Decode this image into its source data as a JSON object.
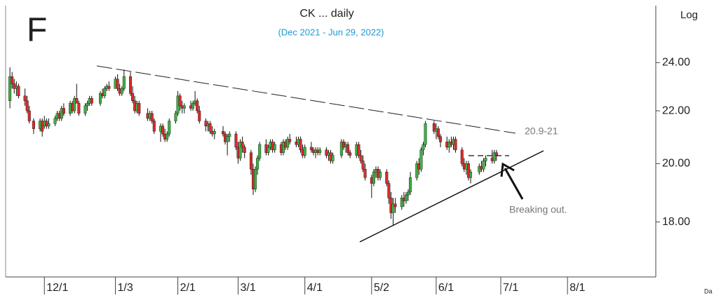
{
  "chart_data": {
    "type": "candlestick",
    "title": "CK ... daily",
    "subtitle": "(Dec 2021 - Jun 29, 2022)",
    "corner_label": "F",
    "scale_label": "Log",
    "log_scale": true,
    "axis_note": "Da",
    "annotations": [
      "20.9-21",
      "Breaking out."
    ],
    "up_color": "#3cb043",
    "down_color": "#d92a2a",
    "ylim": [
      16.3,
      26.6
    ],
    "yticks": [
      {
        "value": 18,
        "label": "18.00"
      },
      {
        "value": 20,
        "label": "20.00"
      },
      {
        "value": 22,
        "label": "22.00"
      },
      {
        "value": 24,
        "label": "24.00"
      }
    ],
    "xlim": [
      "2021-11-13",
      "2022-09-11"
    ],
    "xticks": [
      {
        "value": "2021-12-01",
        "label": "12/1"
      },
      {
        "value": "2022-01-03",
        "label": "1/3"
      },
      {
        "value": "2022-02-01",
        "label": "2/1"
      },
      {
        "value": "2022-03-01",
        "label": "3/1"
      },
      {
        "value": "2022-04-01",
        "label": "4/1"
      },
      {
        "value": "2022-05-02",
        "label": "5/2"
      },
      {
        "value": "2022-06-01",
        "label": "6/1"
      },
      {
        "value": "2022-07-01",
        "label": "7/1"
      },
      {
        "value": "2022-08-01",
        "label": "8/1"
      }
    ],
    "x": [
      "2021-11-15",
      "2021-11-16",
      "2021-11-17",
      "2021-11-18",
      "2021-11-19",
      "2021-11-22",
      "2021-11-23",
      "2021-11-24",
      "2021-11-26",
      "2021-11-29",
      "2021-11-30",
      "2021-12-01",
      "2021-12-02",
      "2021-12-03",
      "2021-12-06",
      "2021-12-07",
      "2021-12-08",
      "2021-12-09",
      "2021-12-10",
      "2021-12-13",
      "2021-12-14",
      "2021-12-15",
      "2021-12-16",
      "2021-12-17",
      "2021-12-20",
      "2021-12-21",
      "2021-12-22",
      "2021-12-23",
      "2021-12-27",
      "2021-12-28",
      "2021-12-29",
      "2021-12-30",
      "2021-12-31",
      "2022-01-03",
      "2022-01-04",
      "2022-01-05",
      "2022-01-06",
      "2022-01-07",
      "2022-01-10",
      "2022-01-11",
      "2022-01-12",
      "2022-01-13",
      "2022-01-14",
      "2022-01-18",
      "2022-01-19",
      "2022-01-20",
      "2022-01-21",
      "2022-01-24",
      "2022-01-25",
      "2022-01-26",
      "2022-01-27",
      "2022-01-28",
      "2022-01-31",
      "2022-02-01",
      "2022-02-02",
      "2022-02-03",
      "2022-02-04",
      "2022-02-07",
      "2022-02-08",
      "2022-02-09",
      "2022-02-10",
      "2022-02-11",
      "2022-02-14",
      "2022-02-15",
      "2022-02-16",
      "2022-02-17",
      "2022-02-18",
      "2022-02-22",
      "2022-02-23",
      "2022-02-24",
      "2022-02-25",
      "2022-02-28",
      "2022-03-01",
      "2022-03-02",
      "2022-03-03",
      "2022-03-04",
      "2022-03-07",
      "2022-03-08",
      "2022-03-09",
      "2022-03-10",
      "2022-03-11",
      "2022-03-14",
      "2022-03-15",
      "2022-03-16",
      "2022-03-17",
      "2022-03-18",
      "2022-03-21",
      "2022-03-22",
      "2022-03-23",
      "2022-03-24",
      "2022-03-25",
      "2022-03-28",
      "2022-03-29",
      "2022-03-30",
      "2022-03-31",
      "2022-04-01",
      "2022-04-04",
      "2022-04-05",
      "2022-04-06",
      "2022-04-07",
      "2022-04-08",
      "2022-04-11",
      "2022-04-12",
      "2022-04-13",
      "2022-04-14",
      "2022-04-18",
      "2022-04-19",
      "2022-04-20",
      "2022-04-21",
      "2022-04-22",
      "2022-04-25",
      "2022-04-26",
      "2022-04-27",
      "2022-04-28",
      "2022-04-29",
      "2022-05-02",
      "2022-05-03",
      "2022-05-04",
      "2022-05-05",
      "2022-05-06",
      "2022-05-09",
      "2022-05-10",
      "2022-05-11",
      "2022-05-12",
      "2022-05-13",
      "2022-05-16",
      "2022-05-17",
      "2022-05-18",
      "2022-05-19",
      "2022-05-20",
      "2022-05-23",
      "2022-05-24",
      "2022-05-25",
      "2022-05-26",
      "2022-05-27",
      "2022-05-31",
      "2022-06-01",
      "2022-06-02",
      "2022-06-03",
      "2022-06-06",
      "2022-06-07",
      "2022-06-08",
      "2022-06-09",
      "2022-06-10",
      "2022-06-13",
      "2022-06-14",
      "2022-06-15",
      "2022-06-16",
      "2022-06-17",
      "2022-06-21",
      "2022-06-22",
      "2022-06-23",
      "2022-06-24",
      "2022-06-27",
      "2022-06-28",
      "2022-06-29"
    ],
    "ohlc": [
      [
        22.4,
        23.8,
        22.1,
        23.4
      ],
      [
        23.4,
        23.6,
        22.9,
        23.1
      ],
      [
        23.1,
        23.3,
        22.7,
        22.9
      ],
      [
        22.9,
        23.2,
        22.6,
        23.0
      ],
      [
        23.0,
        23.1,
        22.5,
        22.6
      ],
      [
        22.6,
        22.9,
        22.2,
        22.4
      ],
      [
        22.4,
        22.6,
        21.9,
        22.0
      ],
      [
        22.0,
        22.2,
        21.5,
        21.6
      ],
      [
        21.6,
        21.7,
        21.1,
        21.3
      ],
      [
        21.3,
        21.7,
        21.2,
        21.6
      ],
      [
        21.6,
        21.7,
        21.0,
        21.2
      ],
      [
        21.4,
        21.8,
        21.3,
        21.6
      ],
      [
        21.6,
        21.7,
        21.3,
        21.4
      ],
      [
        21.4,
        21.7,
        21.3,
        21.5
      ],
      [
        21.5,
        21.8,
        21.4,
        21.7
      ],
      [
        21.7,
        22.0,
        21.6,
        21.9
      ],
      [
        21.9,
        22.0,
        21.6,
        21.7
      ],
      [
        21.7,
        22.2,
        21.6,
        22.1
      ],
      [
        22.1,
        22.3,
        21.8,
        21.9
      ],
      [
        21.9,
        22.4,
        21.8,
        22.3
      ],
      [
        22.3,
        22.4,
        21.9,
        22.0
      ],
      [
        22.0,
        22.6,
        21.9,
        22.5
      ],
      [
        22.5,
        23.1,
        22.4,
        22.3
      ],
      [
        22.3,
        22.4,
        21.8,
        21.9
      ],
      [
        21.9,
        22.3,
        21.8,
        22.2
      ],
      [
        22.2,
        22.4,
        22.0,
        22.3
      ],
      [
        22.3,
        22.6,
        22.2,
        22.5
      ],
      [
        22.5,
        22.6,
        22.2,
        22.3
      ],
      [
        22.3,
        22.8,
        22.2,
        22.7
      ],
      [
        22.7,
        22.9,
        22.5,
        22.6
      ],
      [
        22.6,
        23.0,
        22.5,
        22.9
      ],
      [
        22.9,
        23.1,
        22.8,
        23.0
      ],
      [
        23.0,
        23.2,
        22.8,
        22.9
      ],
      [
        22.9,
        23.4,
        22.9,
        23.3
      ],
      [
        23.3,
        23.5,
        22.8,
        22.9
      ],
      [
        22.9,
        23.1,
        22.6,
        22.7
      ],
      [
        22.7,
        23.0,
        22.6,
        22.9
      ],
      [
        22.9,
        23.7,
        22.8,
        23.4
      ],
      [
        23.4,
        23.6,
        22.6,
        22.7
      ],
      [
        22.7,
        23.0,
        22.3,
        22.4
      ],
      [
        22.4,
        22.6,
        21.9,
        22.0
      ],
      [
        22.0,
        22.4,
        21.9,
        22.3
      ],
      [
        22.3,
        22.4,
        21.8,
        21.9
      ],
      [
        21.9,
        22.1,
        21.6,
        21.7
      ],
      [
        21.7,
        22.0,
        21.6,
        21.9
      ],
      [
        21.9,
        22.0,
        21.5,
        21.6
      ],
      [
        21.6,
        21.7,
        21.1,
        21.2
      ],
      [
        21.2,
        21.5,
        20.8,
        21.4
      ],
      [
        21.4,
        21.5,
        21.0,
        21.1
      ],
      [
        21.1,
        21.3,
        20.8,
        20.9
      ],
      [
        20.9,
        21.2,
        20.8,
        21.1
      ],
      [
        21.1,
        21.7,
        21.0,
        21.6
      ],
      [
        21.6,
        22.0,
        21.5,
        21.9
      ],
      [
        21.9,
        22.8,
        21.8,
        22.6
      ],
      [
        22.6,
        22.7,
        22.0,
        22.2
      ],
      [
        22.2,
        22.4,
        21.9,
        22.1
      ],
      [
        22.1,
        22.3,
        21.9,
        22.2
      ],
      [
        22.2,
        22.4,
        22.0,
        22.1
      ],
      [
        22.1,
        22.4,
        22.0,
        22.3
      ],
      [
        22.3,
        22.8,
        22.2,
        22.4
      ],
      [
        22.4,
        22.5,
        21.9,
        22.0
      ],
      [
        22.0,
        22.2,
        21.5,
        21.6
      ],
      [
        21.6,
        21.7,
        21.2,
        21.4
      ],
      [
        21.4,
        21.6,
        21.2,
        21.5
      ],
      [
        21.5,
        21.6,
        21.1,
        21.2
      ],
      [
        21.2,
        21.4,
        21.0,
        21.1
      ],
      [
        21.1,
        21.3,
        20.9,
        21.2
      ],
      [
        21.2,
        21.4,
        21.0,
        21.1
      ],
      [
        21.1,
        21.2,
        20.7,
        20.8
      ],
      [
        20.8,
        21.1,
        20.3,
        21.0
      ],
      [
        21.0,
        21.2,
        20.8,
        21.1
      ],
      [
        21.1,
        21.2,
        20.5,
        20.6
      ],
      [
        20.6,
        20.8,
        20.0,
        20.2
      ],
      [
        20.2,
        20.9,
        20.1,
        20.8
      ],
      [
        20.8,
        21.0,
        20.4,
        20.6
      ],
      [
        20.6,
        20.7,
        20.2,
        20.4
      ],
      [
        20.4,
        20.5,
        19.6,
        19.8
      ],
      [
        19.8,
        20.0,
        18.9,
        19.1
      ],
      [
        19.1,
        19.9,
        19.0,
        19.8
      ],
      [
        19.8,
        20.3,
        19.6,
        20.2
      ],
      [
        20.2,
        20.8,
        20.1,
        20.7
      ],
      [
        20.7,
        20.9,
        20.3,
        20.4
      ],
      [
        20.4,
        20.7,
        20.3,
        20.6
      ],
      [
        20.6,
        20.9,
        20.5,
        20.8
      ],
      [
        20.8,
        20.9,
        20.4,
        20.5
      ],
      [
        20.5,
        20.8,
        20.4,
        20.7
      ],
      [
        20.7,
        20.8,
        20.3,
        20.4
      ],
      [
        20.4,
        20.9,
        20.3,
        20.8
      ],
      [
        20.8,
        20.9,
        20.5,
        20.6
      ],
      [
        20.6,
        21.0,
        20.5,
        20.9
      ],
      [
        20.9,
        21.1,
        20.7,
        20.8
      ],
      [
        20.8,
        21.0,
        20.6,
        20.7
      ],
      [
        20.7,
        21.0,
        20.6,
        20.9
      ],
      [
        20.9,
        21.0,
        20.4,
        20.5
      ],
      [
        20.5,
        20.7,
        20.2,
        20.3
      ],
      [
        20.3,
        20.7,
        20.2,
        20.6
      ],
      [
        20.6,
        20.8,
        20.4,
        20.5
      ],
      [
        20.5,
        20.6,
        20.3,
        20.4
      ],
      [
        20.4,
        20.6,
        20.2,
        20.5
      ],
      [
        20.5,
        20.6,
        20.3,
        20.4
      ],
      [
        20.4,
        20.6,
        20.3,
        20.5
      ],
      [
        20.5,
        20.6,
        20.2,
        20.3
      ],
      [
        20.3,
        20.5,
        20.1,
        20.4
      ],
      [
        20.4,
        20.5,
        20.0,
        20.1
      ],
      [
        20.1,
        20.4,
        20.0,
        20.3
      ],
      [
        20.3,
        20.9,
        20.2,
        20.8
      ],
      [
        20.8,
        20.9,
        20.5,
        20.6
      ],
      [
        20.6,
        20.8,
        20.4,
        20.7
      ],
      [
        20.7,
        20.8,
        20.3,
        20.4
      ],
      [
        20.4,
        20.5,
        20.2,
        20.3
      ],
      [
        20.3,
        20.8,
        20.2,
        20.7
      ],
      [
        20.7,
        20.8,
        20.2,
        20.3
      ],
      [
        20.3,
        20.5,
        20.0,
        20.1
      ],
      [
        20.1,
        20.3,
        19.7,
        19.8
      ],
      [
        19.8,
        20.0,
        19.4,
        19.5
      ],
      [
        19.5,
        19.6,
        18.8,
        19.3
      ],
      [
        19.3,
        19.8,
        19.2,
        19.7
      ],
      [
        19.7,
        19.9,
        19.5,
        19.8
      ],
      [
        19.8,
        19.9,
        19.4,
        19.5
      ],
      [
        19.5,
        19.8,
        19.4,
        19.7
      ],
      [
        19.7,
        19.8,
        19.2,
        19.3
      ],
      [
        19.3,
        19.4,
        18.6,
        18.8
      ],
      [
        18.8,
        19.0,
        18.1,
        18.3
      ],
      [
        18.3,
        18.8,
        17.9,
        18.6
      ],
      [
        18.6,
        18.8,
        18.3,
        18.5
      ],
      [
        18.5,
        18.9,
        18.4,
        18.8
      ],
      [
        18.8,
        19.0,
        18.5,
        18.7
      ],
      [
        18.7,
        19.0,
        18.6,
        18.9
      ],
      [
        18.9,
        19.1,
        18.7,
        19.0
      ],
      [
        19.0,
        19.7,
        18.9,
        19.5
      ],
      [
        19.5,
        20.1,
        19.4,
        20.0
      ],
      [
        20.0,
        20.2,
        19.6,
        19.8
      ],
      [
        19.8,
        20.6,
        19.7,
        20.5
      ],
      [
        20.5,
        20.8,
        20.3,
        20.7
      ],
      [
        20.7,
        21.6,
        20.6,
        21.5
      ],
      [
        21.5,
        21.6,
        21.1,
        21.2
      ],
      [
        21.2,
        21.5,
        20.9,
        21.3
      ],
      [
        21.3,
        21.4,
        20.9,
        21.0
      ],
      [
        21.0,
        21.1,
        20.6,
        20.8
      ],
      [
        20.8,
        21.0,
        20.5,
        20.6
      ],
      [
        20.6,
        20.9,
        20.4,
        20.8
      ],
      [
        20.8,
        21.0,
        20.6,
        20.7
      ],
      [
        20.7,
        21.0,
        20.5,
        20.9
      ],
      [
        20.9,
        21.0,
        20.4,
        20.5
      ],
      [
        20.5,
        20.6,
        19.9,
        20.0
      ],
      [
        20.0,
        20.2,
        19.7,
        19.8
      ],
      [
        19.8,
        20.1,
        19.6,
        20.0
      ],
      [
        20.0,
        20.1,
        19.4,
        19.5
      ],
      [
        19.5,
        19.8,
        19.3,
        19.7
      ],
      [
        19.7,
        20.0,
        19.6,
        19.9
      ],
      [
        19.9,
        20.1,
        19.7,
        19.8
      ],
      [
        19.8,
        20.2,
        19.7,
        20.1
      ],
      [
        20.1,
        20.3,
        19.9,
        20.2
      ],
      [
        20.2,
        20.5,
        20.0,
        20.1
      ],
      [
        20.1,
        20.5,
        20.0,
        20.4
      ],
      [
        20.4,
        20.5,
        20.1,
        20.3
      ]
    ]
  }
}
